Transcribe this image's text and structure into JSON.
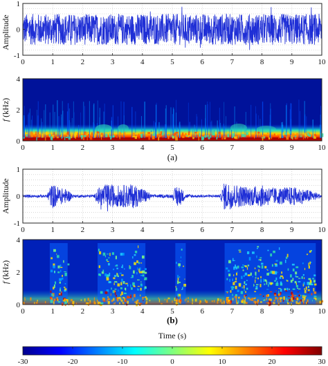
{
  "chart_data": [
    {
      "panel": "(a)",
      "type": "line",
      "ylabel": "Amplitude",
      "xlim": [
        0,
        10
      ],
      "ylim": [
        -1,
        1
      ],
      "xticks": [
        "0",
        "1",
        "2",
        "3",
        "4",
        "5",
        "6",
        "7",
        "8",
        "9",
        "10"
      ],
      "yticks": [
        "-1",
        "0",
        "1"
      ],
      "grid": true,
      "line_color": "#1f2fd6",
      "signal": "broadband noise filling the full interval with amplitude about ±0.6, peaks near ±0.9",
      "envelope": {
        "x": [
          0,
          1,
          2,
          3,
          4,
          5,
          6,
          7,
          8,
          9,
          10
        ],
        "amp": [
          0.6,
          0.6,
          0.6,
          0.6,
          0.6,
          0.6,
          0.6,
          0.6,
          0.6,
          0.6,
          0.6
        ]
      }
    },
    {
      "panel": "(a)",
      "type": "heatmap",
      "ylabel": "f (kHz)",
      "xlim": [
        0,
        10
      ],
      "ylim": [
        0,
        4
      ],
      "xticks": [
        "0",
        "1",
        "2",
        "3",
        "4",
        "5",
        "6",
        "7",
        "8",
        "9",
        "10"
      ],
      "yticks": [
        "0",
        "2",
        "4"
      ],
      "description": "spectrogram of the noisy signal: strong energy band below 0.3 kHz, sparse vertical streaks, weak speech blobs near 3.2-3.5 s and 6.8-8.5 s"
    },
    {
      "panel": "(b)",
      "type": "line",
      "ylabel": "Amplitude",
      "xlim": [
        0,
        10
      ],
      "ylim": [
        -1,
        1
      ],
      "xticks": [
        "0",
        "1",
        "2",
        "3",
        "4",
        "5",
        "6",
        "7",
        "8",
        "9",
        "10"
      ],
      "yticks": [
        "-1",
        "0",
        "1"
      ],
      "grid": true,
      "line_color": "#1f2fd6",
      "signal": "speech bursts on a quiet baseline (~±0.05); bursts at about 0.9-1.5, 2.5-4.1, 5.1-5.4 and 6.7-9.8 s",
      "envelope": {
        "x": [
          0,
          0.8,
          0.9,
          1.0,
          1.3,
          1.5,
          1.7,
          2.4,
          2.5,
          2.8,
          3.2,
          3.7,
          4.1,
          4.3,
          5.0,
          5.15,
          5.3,
          5.45,
          5.8,
          6.6,
          6.75,
          6.9,
          7.5,
          8.0,
          8.5,
          9.0,
          9.5,
          9.8,
          10
        ],
        "amp": [
          0.05,
          0.05,
          0.35,
          0.45,
          0.3,
          0.25,
          0.05,
          0.05,
          0.3,
          0.45,
          0.4,
          0.45,
          0.25,
          0.06,
          0.06,
          0.45,
          0.3,
          0.08,
          0.05,
          0.05,
          0.55,
          0.5,
          0.35,
          0.4,
          0.3,
          0.35,
          0.25,
          0.15,
          0.05
        ]
      }
    },
    {
      "panel": "(b)",
      "type": "heatmap",
      "ylabel": "f (kHz)",
      "xlabel": "Time (s)",
      "xlim": [
        0,
        10
      ],
      "ylim": [
        0,
        4
      ],
      "xticks": [
        "0",
        "1",
        "2",
        "3",
        "4",
        "5",
        "6",
        "7",
        "8",
        "9",
        "10"
      ],
      "yticks": [
        "0",
        "2",
        "4"
      ],
      "description": "clean speech spectrogram: harmonic energy regions matching speech bursts, strongest below 1 kHz"
    }
  ],
  "colorbar": {
    "ticks": [
      "-30",
      "-20",
      "-10",
      "0",
      "10",
      "20",
      "30"
    ],
    "range": [
      -30,
      30
    ],
    "colormap": "jet"
  },
  "labels": {
    "caption_a": "(a)",
    "caption_b": "(b)",
    "xlabel": "Time (s)",
    "ylabel_amp": "Amplitude",
    "ylabel_f_italic": "f",
    "ylabel_f_unit": " (kHz)"
  }
}
